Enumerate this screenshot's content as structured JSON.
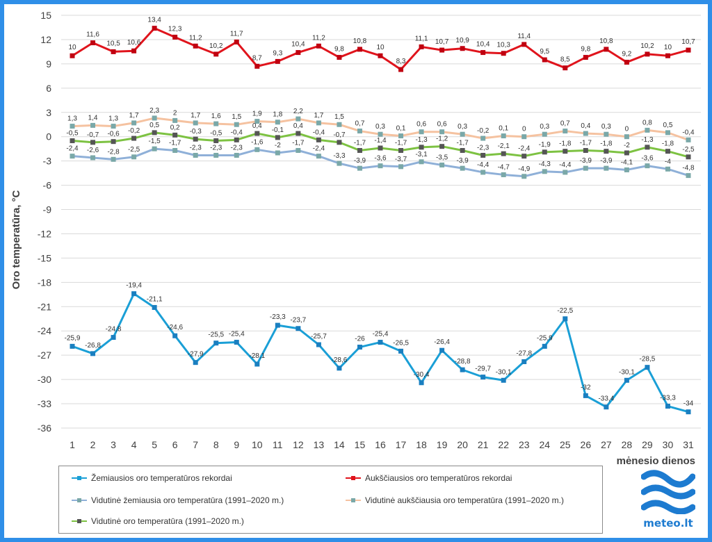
{
  "chart_data": {
    "type": "line",
    "ylabel": "Oro temperatūra, °C",
    "xlabel": "mėnesio dienos",
    "ylim": [
      -36,
      15
    ],
    "yticks": [
      15,
      12,
      9,
      6,
      3,
      0,
      -3,
      -6,
      -9,
      -12,
      -15,
      -18,
      -21,
      -24,
      -27,
      -30,
      -33,
      -36
    ],
    "categories": [
      "1",
      "2",
      "3",
      "4",
      "5",
      "6",
      "7",
      "8",
      "9",
      "10",
      "11",
      "12",
      "13",
      "14",
      "15",
      "16",
      "17",
      "18",
      "19",
      "20",
      "21",
      "22",
      "23",
      "24",
      "25",
      "26",
      "27",
      "28",
      "29",
      "30",
      "31"
    ],
    "grid": "horizontal",
    "legend_position": "bottom",
    "series": [
      {
        "name": "Žemiausios oro temperatūros rekordai",
        "color": "#1a9fd6",
        "values": [
          -25.9,
          -26.8,
          -24.8,
          -19.4,
          -21.1,
          -24.6,
          -27.9,
          -25.5,
          -25.4,
          -28.1,
          -23.3,
          -23.7,
          -25.7,
          -28.6,
          -26,
          -25.4,
          -26.5,
          -30.4,
          -26.4,
          -28.8,
          -29.7,
          -30.1,
          -27.8,
          -25.9,
          -22.5,
          -32,
          -33.4,
          -30.1,
          -28.5,
          -33.3,
          -34
        ]
      },
      {
        "name": "Aukščiausios oro temperatūros rekordai",
        "color": "#e0141c",
        "values": [
          10,
          11.6,
          10.5,
          10.6,
          13.4,
          12.3,
          11.2,
          10.2,
          11.7,
          8.7,
          9.3,
          10.4,
          11.2,
          9.8,
          10.8,
          10,
          8.3,
          11.1,
          10.7,
          10.9,
          10.4,
          10.3,
          11.4,
          9.5,
          8.5,
          9.8,
          10.8,
          9.2,
          10.2,
          10,
          10.7
        ]
      },
      {
        "name": "Vidutinė žemiausia oro temperatūra (1991–2020 m.)",
        "color": "#8fb0d8",
        "values": [
          -2.4,
          -2.6,
          -2.8,
          -2.5,
          -1.5,
          -1.7,
          -2.3,
          -2.3,
          -2.3,
          -1.6,
          -2,
          -1.7,
          -2.4,
          -3.3,
          -3.9,
          -3.6,
          -3.7,
          -3.1,
          -3.5,
          -3.9,
          -4.4,
          -4.7,
          -4.9,
          -4.3,
          -4.4,
          -3.9,
          -3.9,
          -4.1,
          -3.6,
          -4,
          -4.8
        ]
      },
      {
        "name": "Vidutinė aukščiausia oro temperatūra (1991–2020 m.)",
        "color": "#f5c2a0",
        "values": [
          1.3,
          1.4,
          1.3,
          1.7,
          2.3,
          2,
          1.7,
          1.6,
          1.5,
          1.9,
          1.8,
          2.2,
          1.7,
          1.5,
          0.7,
          0.3,
          0.1,
          0.6,
          0.6,
          0.3,
          -0.2,
          0.1,
          0,
          0.3,
          0.7,
          0.4,
          0.3,
          0,
          0.8,
          0.5,
          -0.4
        ]
      },
      {
        "name": "Vidutinė oro temperatūra (1991–2020 m.)",
        "color": "#7dc242",
        "values": [
          -0.5,
          -0.7,
          -0.6,
          -0.2,
          0.5,
          0.2,
          -0.3,
          -0.5,
          -0.4,
          0.4,
          -0.1,
          0.4,
          -0.4,
          -0.7,
          -1.7,
          -1.4,
          -1.7,
          -1.3,
          -1.2,
          -1.7,
          -2.3,
          -2.1,
          -2.4,
          -1.9,
          -1.8,
          -1.7,
          -1.8,
          -2,
          -1.3,
          -1.8,
          -2.5
        ]
      }
    ]
  },
  "logo": {
    "text": "meteo.lt",
    "color": "#1d7bd0"
  },
  "frame_color": "#2f8fe8"
}
